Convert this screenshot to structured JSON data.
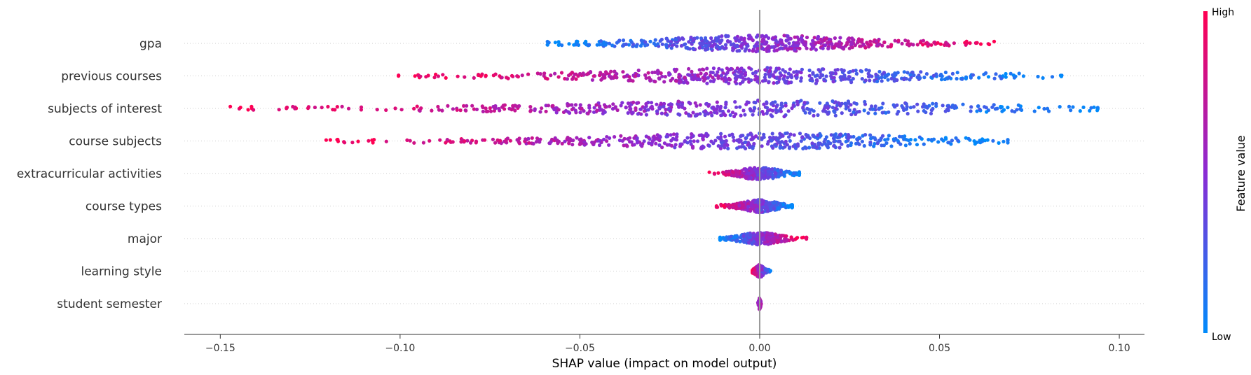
{
  "chart_data": {
    "type": "scatter",
    "subtype": "shap-beeswarm",
    "xlabel": "SHAP value (impact on model output)",
    "xlim": [
      -0.16,
      0.107
    ],
    "x_ticks": [
      -0.15,
      -0.1,
      -0.05,
      0.0,
      0.05,
      0.1
    ],
    "x_tick_labels": [
      "−0.15",
      "−0.10",
      "−0.05",
      "0.00",
      "0.05",
      "0.10"
    ],
    "features": [
      {
        "name": "gpa",
        "min": -0.059,
        "max": 0.067,
        "low_side": "left"
      },
      {
        "name": "previous courses",
        "min": -0.101,
        "max": 0.084,
        "low_side": "right"
      },
      {
        "name": "subjects of interest",
        "min": -0.148,
        "max": 0.094,
        "low_side": "right"
      },
      {
        "name": "course subjects",
        "min": -0.122,
        "max": 0.069,
        "low_side": "right"
      },
      {
        "name": "extracurricular activities",
        "min": -0.014,
        "max": 0.011,
        "low_side": "right"
      },
      {
        "name": "course types",
        "min": -0.012,
        "max": 0.009,
        "low_side": "right"
      },
      {
        "name": "major",
        "min": -0.011,
        "max": 0.013,
        "low_side": "left"
      },
      {
        "name": "learning style",
        "min": -0.002,
        "max": 0.003,
        "low_side": "right"
      },
      {
        "name": "student semester",
        "min": -0.0005,
        "max": 0.0005,
        "low_side": "none"
      }
    ],
    "colorbar": {
      "label": "Feature value",
      "high_label": "High",
      "low_label": "Low",
      "high_color": "#ff0052",
      "low_color": "#008bfb",
      "mid_color": "#8b2bd4"
    },
    "zero_line": 0.0,
    "grid": false
  }
}
